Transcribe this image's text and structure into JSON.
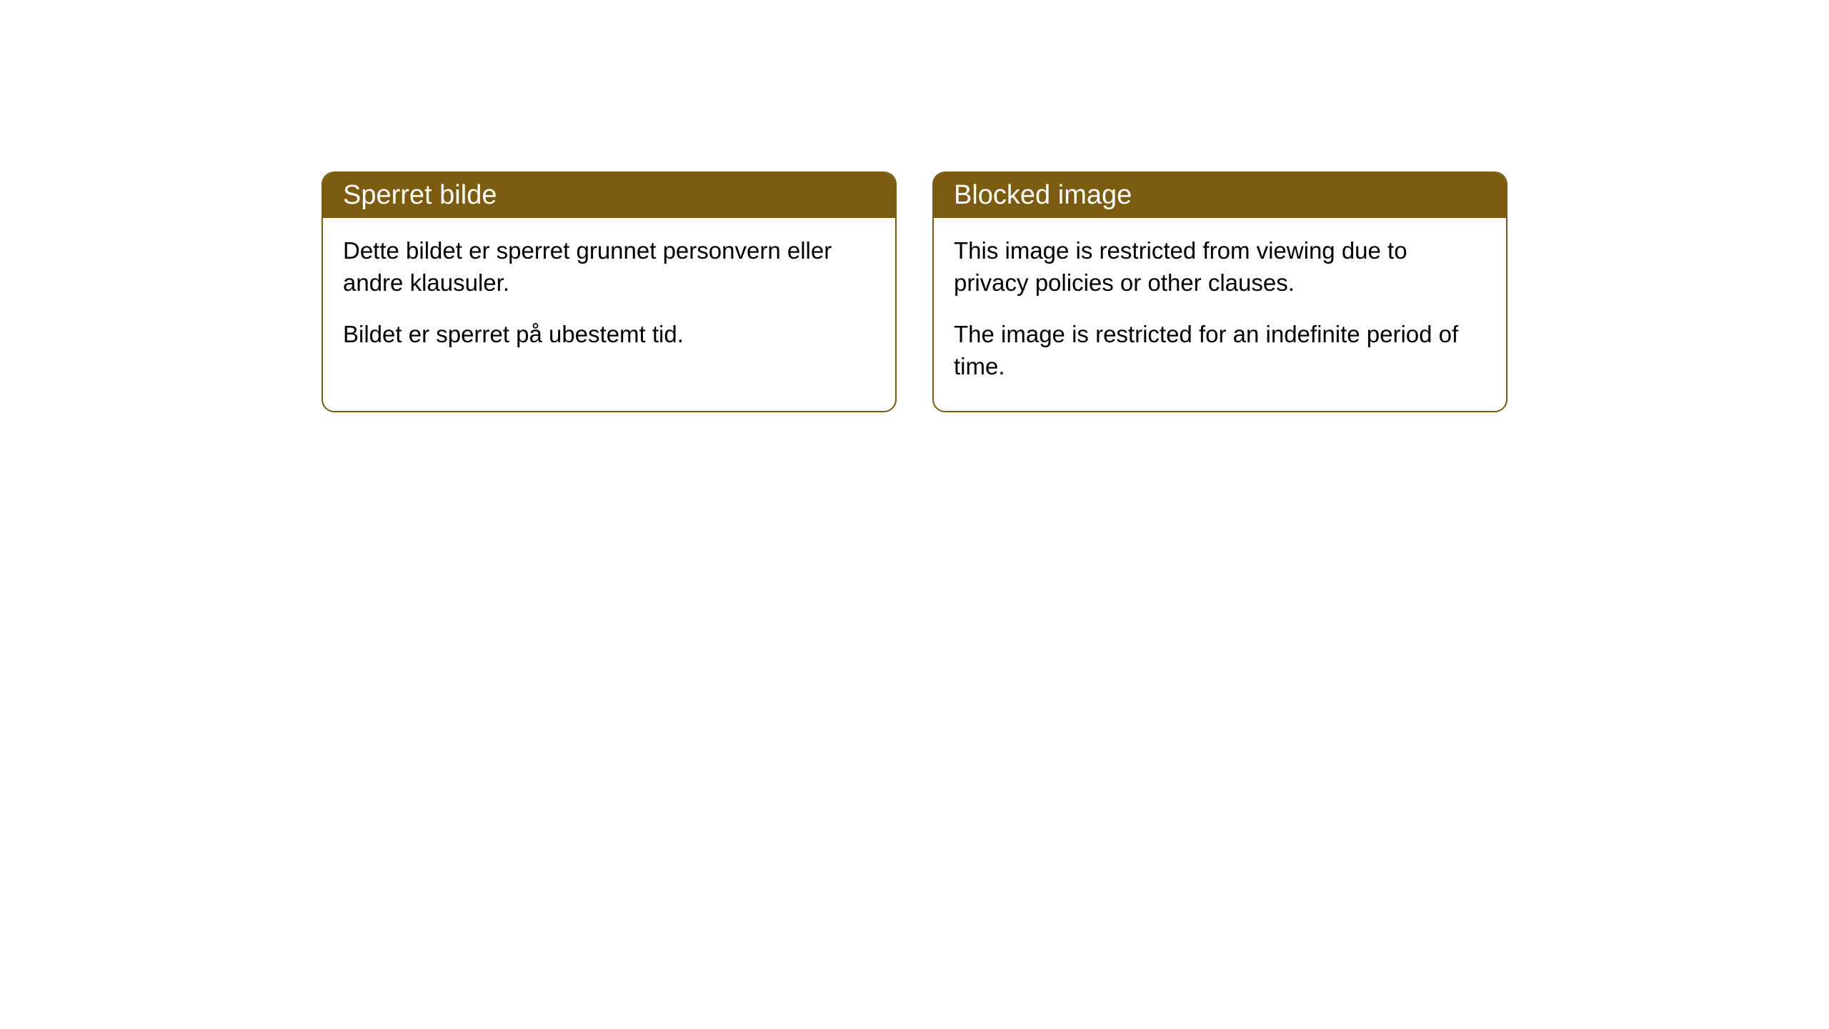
{
  "styling": {
    "header_bg_color": "#7a5b0f",
    "header_text_color": "#ffffff",
    "border_color": "#7a5b0f",
    "body_bg_color": "#ffffff",
    "body_text_color": "#000000",
    "border_radius": "18px",
    "header_font_size": "38px",
    "body_font_size": "33px"
  },
  "cards": {
    "left": {
      "title": "Sperret bilde",
      "paragraph1": "Dette bildet er sperret grunnet personvern eller andre klausuler.",
      "paragraph2": "Bildet er sperret på ubestemt tid."
    },
    "right": {
      "title": "Blocked image",
      "paragraph1": "This image is restricted from viewing due to privacy policies or other clauses.",
      "paragraph2": "The image is restricted for an indefinite period of time."
    }
  }
}
